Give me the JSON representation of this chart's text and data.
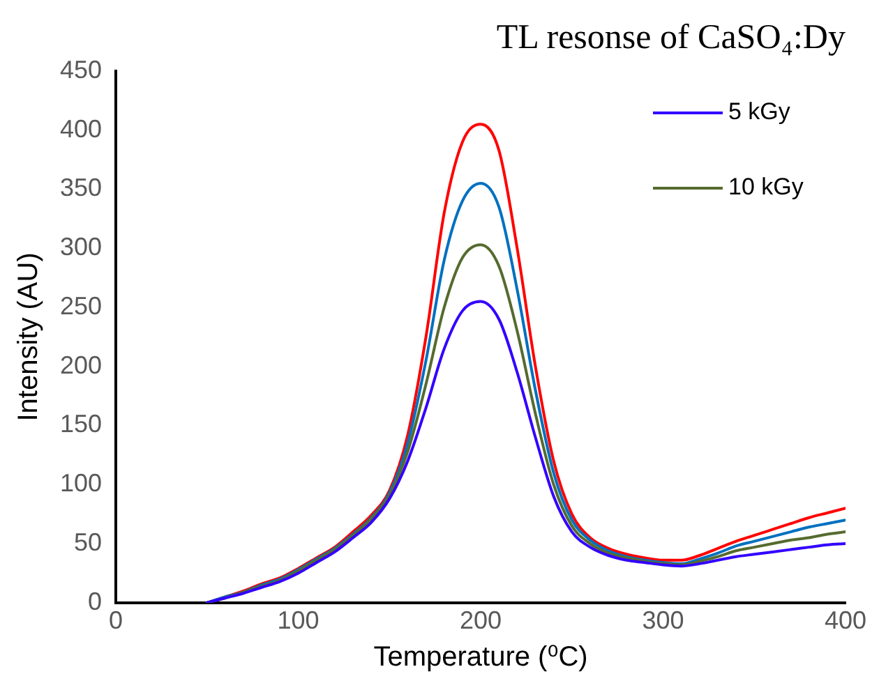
{
  "chart_data": {
    "type": "line",
    "title": "TL resonse of CaSO₄:Dy",
    "xlabel": "Temperature (⁰C)",
    "ylabel": "Intensity (AU)",
    "x": [
      50,
      60,
      70,
      80,
      90,
      100,
      110,
      120,
      130,
      140,
      150,
      160,
      170,
      180,
      190,
      200,
      210,
      220,
      230,
      240,
      250,
      260,
      270,
      280,
      290,
      300,
      310,
      320,
      330,
      340,
      350,
      360,
      370,
      380,
      390,
      400
    ],
    "series": [
      {
        "name": "5 kGy",
        "color": "#3300ff",
        "values": [
          0,
          4,
          8,
          13,
          18,
          25,
          34,
          43,
          55,
          68,
          88,
          120,
          165,
          215,
          247,
          255,
          240,
          195,
          140,
          90,
          60,
          47,
          40,
          36,
          34,
          32,
          31,
          33,
          36,
          39,
          41,
          43,
          45,
          47,
          49,
          50
        ]
      },
      {
        "name": "10 kGy",
        "color": "#556b2f",
        "values": [
          0,
          4,
          9,
          14,
          19,
          27,
          36,
          45,
          57,
          71,
          91,
          128,
          185,
          250,
          292,
          303,
          285,
          230,
          160,
          100,
          65,
          50,
          42,
          38,
          35,
          33,
          32,
          35,
          39,
          44,
          47,
          50,
          53,
          55,
          58,
          60
        ]
      },
      {
        "color": "#0070c0",
        "values": [
          0,
          5,
          9,
          15,
          20,
          28,
          37,
          46,
          58,
          72,
          93,
          135,
          205,
          290,
          340,
          355,
          335,
          265,
          180,
          110,
          70,
          53,
          44,
          39,
          36,
          34,
          33,
          37,
          42,
          48,
          52,
          56,
          60,
          64,
          67,
          70
        ]
      },
      {
        "color": "#ff0000",
        "values": [
          0,
          5,
          10,
          16,
          21,
          29,
          38,
          47,
          60,
          74,
          95,
          142,
          225,
          330,
          390,
          405,
          383,
          300,
          200,
          120,
          75,
          55,
          46,
          41,
          38,
          36,
          36,
          40,
          46,
          52,
          57,
          62,
          67,
          72,
          76,
          80
        ]
      }
    ],
    "xlim": [
      0,
      400
    ],
    "xticks": [
      0,
      100,
      200,
      300,
      400
    ],
    "ylim": [
      0,
      450
    ],
    "yticks": [
      0,
      50,
      100,
      150,
      200,
      250,
      300,
      350,
      400,
      450
    ],
    "grid": false,
    "legend": "top right",
    "marker": "none",
    "line_style": "solid"
  }
}
